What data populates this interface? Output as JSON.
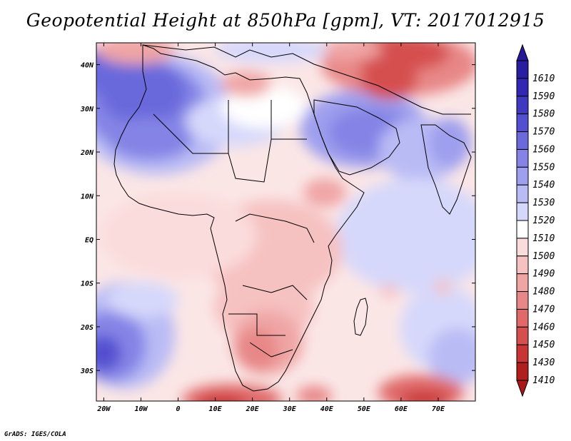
{
  "title": "Geopotential Height at 850hPa [gpm], VT: 2017012915",
  "footer": "GrADS: IGES/COLA",
  "map": {
    "lon_range": [
      -22,
      80
    ],
    "lat_range": [
      -37,
      45
    ],
    "x_ticks": [
      {
        "v": -20,
        "label": "20W"
      },
      {
        "v": -10,
        "label": "10W"
      },
      {
        "v": 0,
        "label": "0"
      },
      {
        "v": 10,
        "label": "10E"
      },
      {
        "v": 20,
        "label": "20E"
      },
      {
        "v": 30,
        "label": "30E"
      },
      {
        "v": 40,
        "label": "40E"
      },
      {
        "v": 50,
        "label": "50E"
      },
      {
        "v": 60,
        "label": "60E"
      },
      {
        "v": 70,
        "label": "70E"
      }
    ],
    "y_ticks": [
      {
        "v": 40,
        "label": "40N"
      },
      {
        "v": 30,
        "label": "30N"
      },
      {
        "v": 20,
        "label": "20N"
      },
      {
        "v": 10,
        "label": "10N"
      },
      {
        "v": 0,
        "label": "EQ"
      },
      {
        "v": -10,
        "label": "10S"
      },
      {
        "v": -20,
        "label": "20S"
      },
      {
        "v": -30,
        "label": "30S"
      }
    ]
  },
  "colorbar": {
    "levels": [
      {
        "label": "1610",
        "color": "#2a1ea0"
      },
      {
        "label": "1590",
        "color": "#3328b4"
      },
      {
        "label": "1580",
        "color": "#3f39c2"
      },
      {
        "label": "1570",
        "color": "#544fd0"
      },
      {
        "label": "1560",
        "color": "#6b69dc"
      },
      {
        "label": "1550",
        "color": "#8584e6"
      },
      {
        "label": "1540",
        "color": "#9e9fee"
      },
      {
        "label": "1530",
        "color": "#b9bbf5"
      },
      {
        "label": "1520",
        "color": "#d6d8fb"
      },
      {
        "label": "1510",
        "color": "#ffffff"
      },
      {
        "label": "1500",
        "color": "#fbdcdc"
      },
      {
        "label": "1490",
        "color": "#f6c1c1"
      },
      {
        "label": "1480",
        "color": "#f0a5a5"
      },
      {
        "label": "1470",
        "color": "#e88787"
      },
      {
        "label": "1460",
        "color": "#e06a6a"
      },
      {
        "label": "1450",
        "color": "#d64f4f"
      },
      {
        "label": "1430",
        "color": "#c93535"
      },
      {
        "label": "1410",
        "color": "#b01e1e"
      }
    ],
    "top_cap_color": "#26199a",
    "bottom_cap_color": "#a81818"
  }
}
